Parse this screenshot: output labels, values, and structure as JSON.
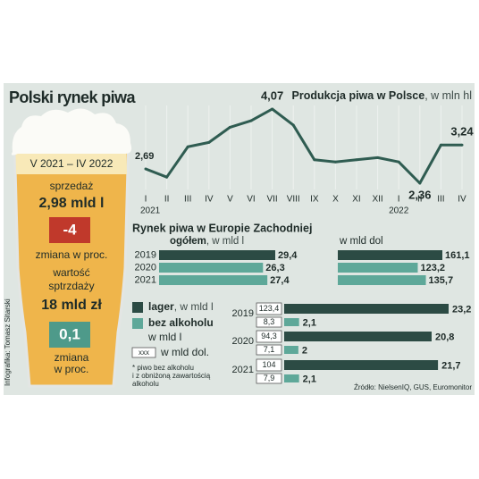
{
  "title": "Polski rynek piwa",
  "credit": "Infografika: Tomasz Sitarski",
  "source": "Źródło: NielsenIQ, GUS, Euromonitor",
  "glass": {
    "period": "V 2021 – IV 2022",
    "sales_label": "sprzedaż",
    "sales": "2,98 mld l",
    "sales_change": "-4",
    "sales_change_label": "zmiana w proc.",
    "value_label": [
      "wartość",
      "sptrzdaży"
    ],
    "value": "18 mld zł",
    "value_change": "0,1",
    "value_change_label": [
      "zmiana",
      "w proc."
    ]
  },
  "chart_data": [
    {
      "type": "line",
      "title": "Produkcja piwa w Polsce",
      "subtitle": ", w mln hl",
      "color": "#2f5c51",
      "categories": [
        "I",
        "II",
        "III",
        "IV",
        "V",
        "VI",
        "VII",
        "VIII",
        "IX",
        "X",
        "XI",
        "XII",
        "I",
        "II",
        "III",
        "IV"
      ],
      "year_labels": [
        "2021",
        null,
        null,
        null,
        null,
        null,
        null,
        null,
        null,
        null,
        null,
        null,
        "2022",
        null,
        null,
        null
      ],
      "values": [
        2.69,
        2.5,
        3.2,
        3.3,
        3.65,
        3.8,
        4.07,
        3.7,
        2.9,
        2.85,
        2.9,
        2.95,
        2.85,
        2.36,
        3.24,
        3.24
      ],
      "value_labels": [
        "2,69",
        null,
        null,
        null,
        null,
        null,
        "4,07",
        null,
        null,
        null,
        null,
        null,
        null,
        "2,36",
        null,
        "3,24"
      ]
    },
    {
      "type": "hbar",
      "title": "Rynek piwa w Europie Zachodniej",
      "categories": [
        "2019",
        "2020",
        "2021"
      ],
      "colors": [
        "#2c4b44",
        "#5ea899",
        "#5ea899"
      ],
      "series": [
        {
          "name": "ogółem",
          "unit": ", w mld l",
          "values": [
            29.4,
            26.3,
            27.4
          ],
          "value_labels": [
            "29,4",
            "26,3",
            "27,4"
          ]
        },
        {
          "name": "w mld dol",
          "values": [
            161.1,
            123.2,
            135.7
          ],
          "value_labels": [
            "161,1",
            "123,2",
            "135,7"
          ]
        }
      ]
    },
    {
      "type": "grouped-hbar",
      "categories": [
        "2019",
        "2020",
        "2021"
      ],
      "series": [
        {
          "name": "lager",
          "unit": ", w mld l",
          "color": "#2c4b44",
          "values": [
            23.2,
            20.8,
            21.7
          ],
          "value_labels": [
            "23,2",
            "20,8",
            "21,7"
          ],
          "usd_values": [
            123.4,
            94.3,
            104
          ],
          "usd_labels": [
            "123,4",
            "94,3",
            "104"
          ]
        },
        {
          "name": "bez alkoholu",
          "unit": "w mld l",
          "color": "#5ea899",
          "values": [
            2.1,
            2,
            2.1
          ],
          "value_labels": [
            "2,1",
            "2",
            "2,1"
          ],
          "usd_values": [
            8.3,
            7.1,
            7.9
          ],
          "usd_labels": [
            "8,3",
            "7,1",
            "7,9"
          ]
        }
      ],
      "usd_legend": {
        "sample": "xxx",
        "label": "w mld dol."
      },
      "note": [
        "* piwo bez alkoholu",
        "i z obniżoną zawartością",
        "alkoholu"
      ]
    }
  ]
}
